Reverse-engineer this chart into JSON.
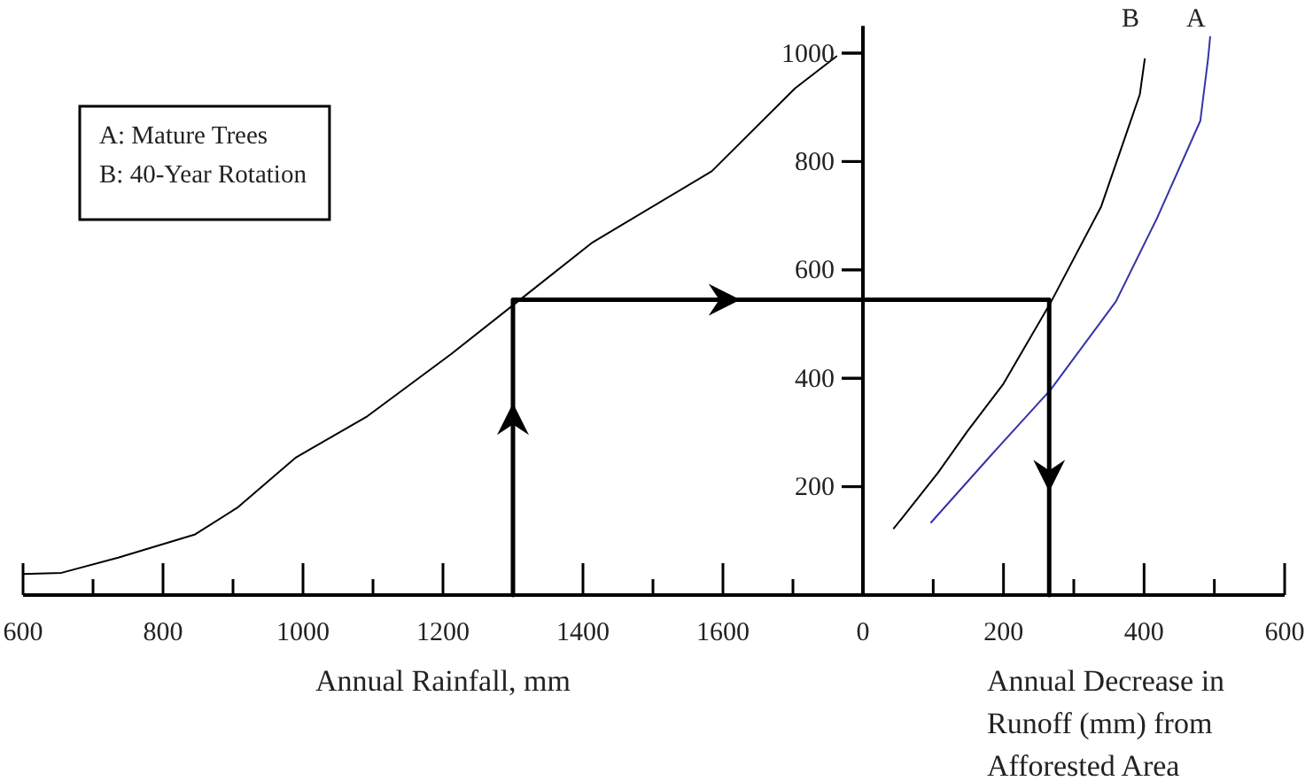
{
  "chart_data": [
    {
      "type": "line",
      "xlabel": "Annual Rainfall, mm",
      "xlim": [
        600,
        1800
      ],
      "ylim": [
        0,
        1050
      ],
      "yticks": [
        200,
        400,
        600,
        800,
        1000
      ],
      "tick_labels": "x",
      "xticks": [
        600,
        {
          "value": 700,
          "label": null
        },
        800,
        {
          "value": 900,
          "label": null
        },
        1000,
        {
          "value": 1100,
          "label": null
        },
        1200,
        {
          "value": 1300,
          "label": null
        },
        1400,
        {
          "value": 1500,
          "label": null
        },
        1600,
        {
          "value": 1700,
          "label": null
        },
        {
          "value": 1800,
          "label": null
        }
      ],
      "annotations": [
        "A: Mature Trees",
        "B: 40-Year Rotation"
      ],
      "series": [
        {
          "color": "#000000",
          "x": [
            600,
            655,
            736,
            846,
            906,
            990,
            1092,
            1211,
            1313,
            1414,
            1584,
            1703,
            1762
          ],
          "values": [
            39,
            41,
            69,
            112,
            161,
            254,
            330,
            444,
            548,
            651,
            782,
            935,
            994
          ]
        },
        {
          "color": "#000000",
          "x": [
            1300,
            1300,
            1800
          ],
          "values": [
            0,
            545,
            545
          ]
        }
      ]
    },
    {
      "type": "line",
      "xlabel": "Annual Decrease in Runoff (mm) from Afforested Area",
      "xlim": [
        0,
        600
      ],
      "ylim": [
        0,
        1050
      ],
      "xticks": [
        0,
        {
          "value": 100,
          "label": null
        },
        200,
        {
          "value": 300,
          "label": null
        },
        400,
        {
          "value": 500,
          "label": null
        },
        600
      ],
      "yticks": [
        200,
        400,
        600,
        800,
        1000
      ],
      "series": [
        {
          "name": "B",
          "color": "#000000",
          "x": [
            44,
            107,
            149,
            200,
            266,
            339,
            394,
            401
          ],
          "values": [
            123,
            226,
            303,
            390,
            537,
            717,
            924,
            989
          ]
        },
        {
          "name": "A",
          "color": "#3333aa",
          "x": [
            97,
            183,
            267,
            360,
            419,
            480,
            491,
            494
          ],
          "values": [
            134,
            259,
            379,
            542,
            697,
            875,
            989,
            1030
          ]
        },
        {
          "color": "#000000",
          "x": [
            0,
            265,
            265
          ],
          "values": [
            545,
            545,
            0
          ]
        }
      ]
    }
  ]
}
